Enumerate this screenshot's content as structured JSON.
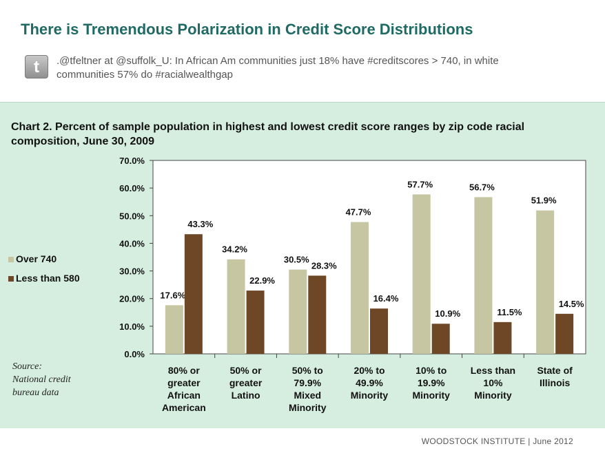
{
  "slide": {
    "title": "There is Tremendous Polarization in Credit Score Distributions",
    "tweet": ".@tfeltner  at @suffolk_U:  In African Am communities just 18% have #creditscores > 740, in white communities 57% do #racialwealthgap",
    "tweet_icon": "twitter-bird-icon",
    "footer": "WOODSTOCK INSTITUTE    |    June 2012"
  },
  "chart_source": {
    "line1": "Source:",
    "line2": "National credit",
    "line3": "bureau data"
  },
  "colors": {
    "title": "#1f6b63",
    "panel_bg": "#d6eedf",
    "over_740": "#c6c6a2",
    "less_580": "#6e4826"
  },
  "chart_data": {
    "type": "bar",
    "title": "Chart 2. Percent of sample population in highest and lowest credit score ranges by zip code racial composition, June 30, 2009",
    "categories": [
      "80% or greater African American",
      "50% or greater Latino",
      "50% to 79.9% Mixed Minority",
      "20% to 49.9% Minority",
      "10% to 19.9% Minority",
      "Less than 10% Minority",
      "State of Illinois"
    ],
    "category_lines": [
      [
        "80% or",
        "greater",
        "African",
        "American"
      ],
      [
        "50% or",
        "greater",
        "Latino"
      ],
      [
        "50% to",
        "79.9%",
        "Mixed",
        "Minority"
      ],
      [
        "20% to",
        "49.9%",
        "Minority"
      ],
      [
        "10% to",
        "19.9%",
        "Minority"
      ],
      [
        "Less than",
        "10%",
        "Minority"
      ],
      [
        "State of",
        "Illinois"
      ]
    ],
    "series": [
      {
        "name": "Over 740",
        "values": [
          17.6,
          34.2,
          30.5,
          47.7,
          57.7,
          56.7,
          51.9
        ],
        "labels": [
          "17.6%",
          "34.2%",
          "30.5%",
          "47.7%",
          "57.7%",
          "56.7%",
          "51.9%"
        ]
      },
      {
        "name": "Less than 580",
        "values": [
          43.3,
          22.9,
          28.3,
          16.4,
          10.9,
          11.5,
          14.5
        ],
        "labels": [
          "43.3%",
          "22.9%",
          "28.3%",
          "16.4%",
          "10.9%",
          "11.5%",
          "14.5%"
        ]
      }
    ],
    "ylim": [
      0,
      70
    ],
    "yticks": [
      "0.0%",
      "10.0%",
      "20.0%",
      "30.0%",
      "40.0%",
      "50.0%",
      "60.0%",
      "70.0%"
    ],
    "grid": false,
    "legend": "left"
  }
}
